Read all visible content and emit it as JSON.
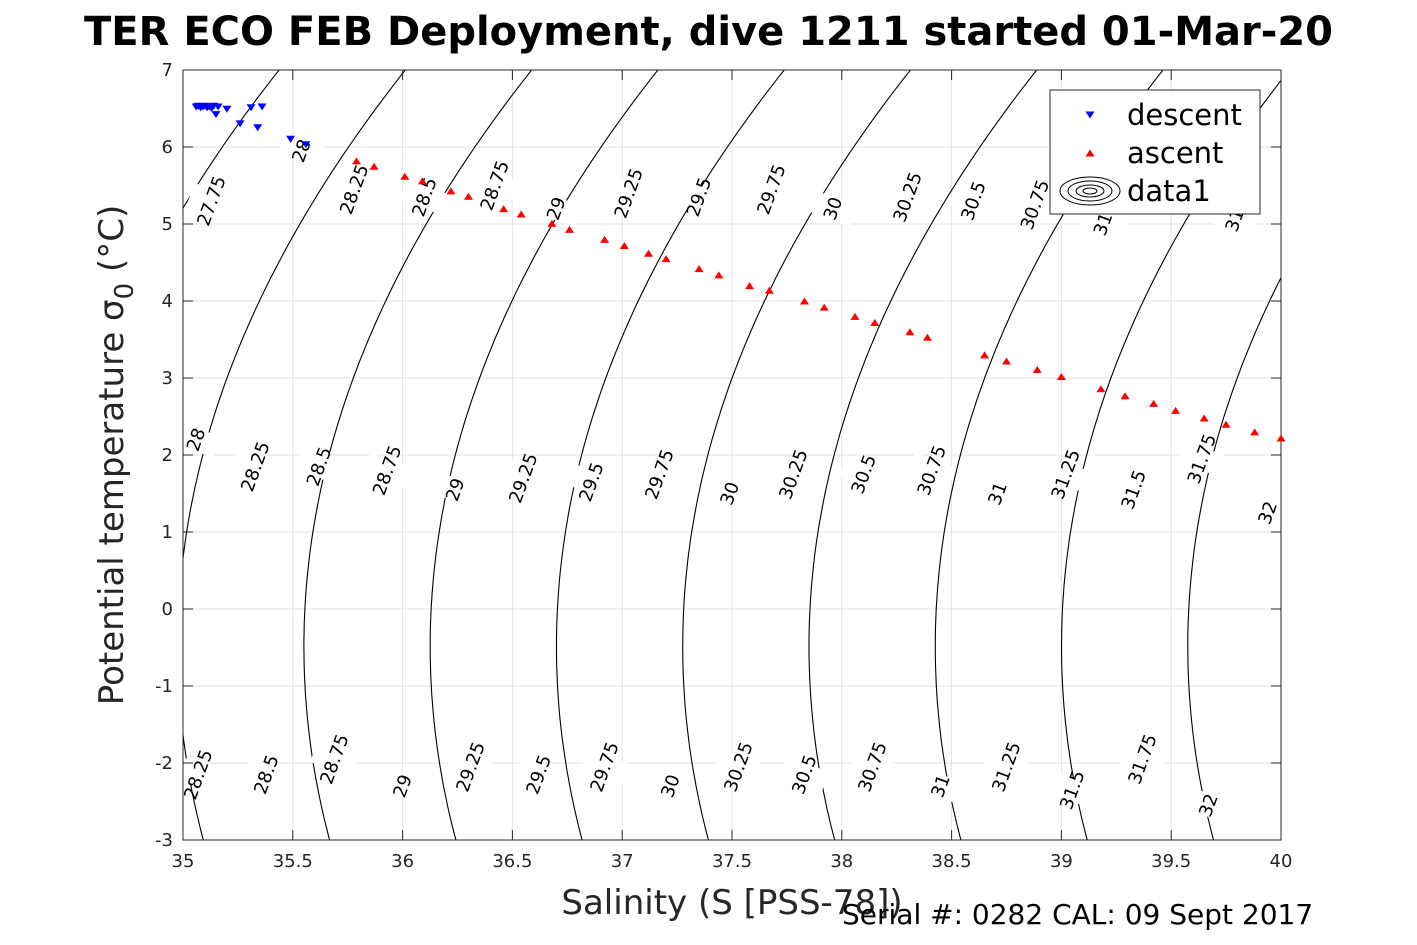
{
  "chart_data": {
    "type": "scatter",
    "title": "TER ECO FEB Deployment, dive 1211 started 01-Mar-20",
    "xlabel": "Salinity (S [PSS-78])",
    "ylabel": "Potential temperature σ",
    "ylabel_sub": "0",
    "ylabel_unit": "(°C)",
    "xlim": [
      35,
      40
    ],
    "ylim": [
      -3,
      7
    ],
    "x_ticks": [
      "35",
      "35.5",
      "36",
      "36.5",
      "37",
      "37.5",
      "38",
      "38.5",
      "39",
      "39.5",
      "40"
    ],
    "y_ticks": [
      "-3",
      "-2",
      "-1",
      "0",
      "1",
      "2",
      "3",
      "4",
      "5",
      "6",
      "7"
    ],
    "grid": true,
    "legend_position": "top-right",
    "legend": [
      "descent",
      "ascent",
      "data1"
    ],
    "series": [
      {
        "name": "descent",
        "marker": "triangle-down",
        "color": "#0000ff",
        "points": [
          [
            35.06,
            6.52
          ],
          [
            35.07,
            6.53
          ],
          [
            35.08,
            6.51
          ],
          [
            35.09,
            6.52
          ],
          [
            35.1,
            6.53
          ],
          [
            35.11,
            6.51
          ],
          [
            35.12,
            6.52
          ],
          [
            35.13,
            6.5
          ],
          [
            35.14,
            6.53
          ],
          [
            35.15,
            6.42
          ],
          [
            35.16,
            6.52
          ],
          [
            35.2,
            6.49
          ],
          [
            35.26,
            6.3
          ],
          [
            35.31,
            6.51
          ],
          [
            35.34,
            6.25
          ],
          [
            35.36,
            6.52
          ],
          [
            35.49,
            6.1
          ],
          [
            35.56,
            6.03
          ]
        ]
      },
      {
        "name": "ascent",
        "marker": "triangle-up",
        "color": "#ff0000",
        "points": [
          [
            35.79,
            5.82
          ],
          [
            35.87,
            5.75
          ],
          [
            36.01,
            5.62
          ],
          [
            36.09,
            5.56
          ],
          [
            36.22,
            5.43
          ],
          [
            36.3,
            5.36
          ],
          [
            36.46,
            5.2
          ],
          [
            36.54,
            5.13
          ],
          [
            36.68,
            5.01
          ],
          [
            36.76,
            4.93
          ],
          [
            36.92,
            4.8
          ],
          [
            37.01,
            4.72
          ],
          [
            37.12,
            4.62
          ],
          [
            37.2,
            4.55
          ],
          [
            37.35,
            4.42
          ],
          [
            37.44,
            4.34
          ],
          [
            37.58,
            4.2
          ],
          [
            37.67,
            4.14
          ],
          [
            37.83,
            4.0
          ],
          [
            37.92,
            3.92
          ],
          [
            38.06,
            3.8
          ],
          [
            38.15,
            3.72
          ],
          [
            38.31,
            3.6
          ],
          [
            38.39,
            3.53
          ],
          [
            38.65,
            3.3
          ],
          [
            38.75,
            3.22
          ],
          [
            38.89,
            3.11
          ],
          [
            39.0,
            3.02
          ],
          [
            39.18,
            2.86
          ],
          [
            39.29,
            2.77
          ],
          [
            39.42,
            2.67
          ],
          [
            39.52,
            2.58
          ],
          [
            39.65,
            2.48
          ],
          [
            39.75,
            2.4
          ],
          [
            39.88,
            2.3
          ],
          [
            40.0,
            2.22
          ]
        ]
      }
    ],
    "contours": {
      "name": "data1",
      "levels": [
        27.75,
        28,
        28.25,
        28.5,
        28.75,
        29,
        29.25,
        29.5,
        29.75,
        30,
        30.25,
        30.5,
        30.75,
        31,
        31.25,
        31.5,
        31.75,
        32
      ],
      "labels_upper": [
        {
          "text": "27.75",
          "s": 35.13,
          "t": 5.3
        },
        {
          "text": "28",
          "s": 35.54,
          "t": 5.95
        },
        {
          "text": "28.25",
          "s": 35.78,
          "t": 5.45
        },
        {
          "text": "28.5",
          "s": 36.1,
          "t": 5.35
        },
        {
          "text": "28.75",
          "s": 36.42,
          "t": 5.5
        },
        {
          "text": "29",
          "s": 36.7,
          "t": 5.2
        },
        {
          "text": "29.25",
          "s": 37.03,
          "t": 5.4
        },
        {
          "text": "29.5",
          "s": 37.35,
          "t": 5.35
        },
        {
          "text": "29.75",
          "s": 37.68,
          "t": 5.45
        },
        {
          "text": "30",
          "s": 37.96,
          "t": 5.2
        },
        {
          "text": "30.25",
          "s": 38.3,
          "t": 5.35
        },
        {
          "text": "30.5",
          "s": 38.6,
          "t": 5.3
        },
        {
          "text": "30.75",
          "s": 38.88,
          "t": 5.25
        },
        {
          "text": "31",
          "s": 39.79,
          "t": 5.05
        },
        {
          "text": "31",
          "s": 39.19,
          "t": 5.0
        }
      ],
      "labels_middle": [
        {
          "text": "28",
          "s": 35.06,
          "t": 2.2
        },
        {
          "text": "28.25",
          "s": 35.33,
          "t": 1.85
        },
        {
          "text": "28.5",
          "s": 35.62,
          "t": 1.85
        },
        {
          "text": "28.75",
          "s": 35.93,
          "t": 1.8
        },
        {
          "text": "29",
          "s": 36.24,
          "t": 1.55
        },
        {
          "text": "29.25",
          "s": 36.55,
          "t": 1.7
        },
        {
          "text": "29.5",
          "s": 36.86,
          "t": 1.65
        },
        {
          "text": "29.75",
          "s": 37.17,
          "t": 1.75
        },
        {
          "text": "30",
          "s": 37.49,
          "t": 1.5
        },
        {
          "text": "30.25",
          "s": 37.78,
          "t": 1.75
        },
        {
          "text": "30.5",
          "s": 38.1,
          "t": 1.75
        },
        {
          "text": "30.75",
          "s": 38.41,
          "t": 1.8
        },
        {
          "text": "31",
          "s": 38.71,
          "t": 1.5
        },
        {
          "text": "31.25",
          "s": 39.02,
          "t": 1.75
        },
        {
          "text": "31.5",
          "s": 39.33,
          "t": 1.55
        },
        {
          "text": "31.75",
          "s": 39.64,
          "t": 1.95
        },
        {
          "text": "32",
          "s": 39.94,
          "t": 1.25
        }
      ],
      "labels_lower": [
        {
          "text": "28.25",
          "s": 35.07,
          "t": -2.15
        },
        {
          "text": "28.5",
          "s": 35.38,
          "t": -2.15
        },
        {
          "text": "28.75",
          "s": 35.69,
          "t": -1.95
        },
        {
          "text": "29",
          "s": 36.0,
          "t": -2.3
        },
        {
          "text": "29.25",
          "s": 36.31,
          "t": -2.05
        },
        {
          "text": "29.5",
          "s": 36.62,
          "t": -2.15
        },
        {
          "text": "29.75",
          "s": 36.92,
          "t": -2.05
        },
        {
          "text": "30",
          "s": 37.22,
          "t": -2.3
        },
        {
          "text": "30.25",
          "s": 37.53,
          "t": -2.05
        },
        {
          "text": "30.5",
          "s": 37.83,
          "t": -2.15
        },
        {
          "text": "30.75",
          "s": 38.14,
          "t": -2.05
        },
        {
          "text": "31",
          "s": 38.45,
          "t": -2.3
        },
        {
          "text": "31.25",
          "s": 38.75,
          "t": -2.05
        },
        {
          "text": "31.5",
          "s": 39.05,
          "t": -2.35
        },
        {
          "text": "31.75",
          "s": 39.37,
          "t": -1.95
        },
        {
          "text": "32",
          "s": 39.67,
          "t": -2.55
        }
      ]
    }
  },
  "footer": {
    "serial_text": "Serial #: 0282  CAL: 09 Sept 2017"
  }
}
